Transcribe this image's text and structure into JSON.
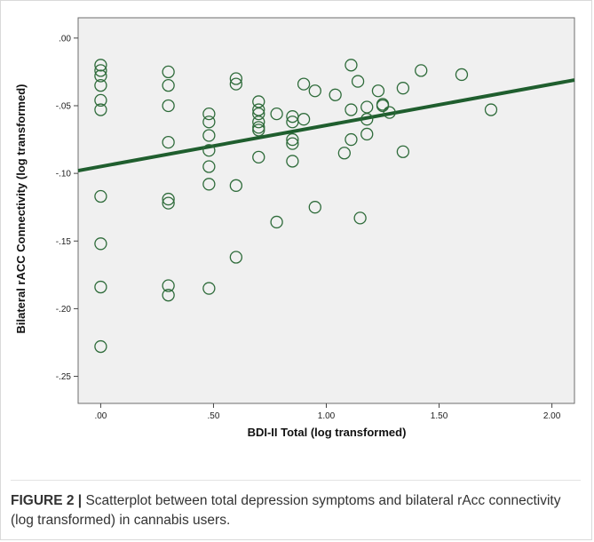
{
  "chart_data": {
    "type": "scatter",
    "xlabel": "BDI-II Total (log transformed)",
    "ylabel": "Bilateral rACC Connectivity (log transformed)",
    "xlim": [
      -0.1,
      2.1
    ],
    "ylim": [
      -0.27,
      0.015
    ],
    "x_ticks": [
      {
        "value": 0.0,
        "label": ".00"
      },
      {
        "value": 0.5,
        "label": ".50"
      },
      {
        "value": 1.0,
        "label": "1.00"
      },
      {
        "value": 1.5,
        "label": "1.50"
      },
      {
        "value": 2.0,
        "label": "2.00"
      }
    ],
    "y_ticks": [
      {
        "value": 0.0,
        "label": ".00"
      },
      {
        "value": -0.05,
        "label": "-.05"
      },
      {
        "value": -0.1,
        "label": "-.10"
      },
      {
        "value": -0.15,
        "label": "-.15"
      },
      {
        "value": -0.2,
        "label": "-.20"
      },
      {
        "value": -0.25,
        "label": "-.25"
      }
    ],
    "marker": "open-circle",
    "marker_color": "#2e6b3a",
    "fit_line": {
      "color": "#1f5e2e",
      "start": [
        -0.1,
        -0.098
      ],
      "end": [
        2.1,
        -0.031
      ]
    },
    "grid": false,
    "background": "#f0f0f0",
    "points": [
      [
        0.0,
        -0.02
      ],
      [
        0.0,
        -0.024
      ],
      [
        0.0,
        -0.028
      ],
      [
        0.0,
        -0.035
      ],
      [
        0.0,
        -0.046
      ],
      [
        0.0,
        -0.053
      ],
      [
        0.0,
        -0.117
      ],
      [
        0.0,
        -0.152
      ],
      [
        0.0,
        -0.184
      ],
      [
        0.0,
        -0.228
      ],
      [
        0.3,
        -0.025
      ],
      [
        0.3,
        -0.035
      ],
      [
        0.3,
        -0.05
      ],
      [
        0.3,
        -0.077
      ],
      [
        0.3,
        -0.119
      ],
      [
        0.3,
        -0.122
      ],
      [
        0.3,
        -0.183
      ],
      [
        0.3,
        -0.19
      ],
      [
        0.48,
        -0.056
      ],
      [
        0.48,
        -0.062
      ],
      [
        0.48,
        -0.072
      ],
      [
        0.48,
        -0.083
      ],
      [
        0.48,
        -0.095
      ],
      [
        0.48,
        -0.108
      ],
      [
        0.48,
        -0.185
      ],
      [
        0.6,
        -0.03
      ],
      [
        0.6,
        -0.034
      ],
      [
        0.6,
        -0.109
      ],
      [
        0.6,
        -0.162
      ],
      [
        0.7,
        -0.047
      ],
      [
        0.7,
        -0.053
      ],
      [
        0.7,
        -0.056
      ],
      [
        0.7,
        -0.062
      ],
      [
        0.7,
        -0.066
      ],
      [
        0.7,
        -0.068
      ],
      [
        0.7,
        -0.088
      ],
      [
        0.78,
        -0.056
      ],
      [
        0.78,
        -0.136
      ],
      [
        0.85,
        -0.058
      ],
      [
        0.85,
        -0.062
      ],
      [
        0.85,
        -0.075
      ],
      [
        0.85,
        -0.078
      ],
      [
        0.85,
        -0.091
      ],
      [
        0.9,
        -0.034
      ],
      [
        0.9,
        -0.06
      ],
      [
        0.95,
        -0.039
      ],
      [
        0.95,
        -0.125
      ],
      [
        1.04,
        -0.042
      ],
      [
        1.08,
        -0.085
      ],
      [
        1.11,
        -0.02
      ],
      [
        1.11,
        -0.053
      ],
      [
        1.11,
        -0.075
      ],
      [
        1.14,
        -0.032
      ],
      [
        1.15,
        -0.133
      ],
      [
        1.18,
        -0.051
      ],
      [
        1.18,
        -0.06
      ],
      [
        1.18,
        -0.071
      ],
      [
        1.23,
        -0.039
      ],
      [
        1.25,
        -0.049
      ],
      [
        1.25,
        -0.05
      ],
      [
        1.28,
        -0.055
      ],
      [
        1.34,
        -0.037
      ],
      [
        1.34,
        -0.084
      ],
      [
        1.42,
        -0.024
      ],
      [
        1.6,
        -0.027
      ],
      [
        1.73,
        -0.053
      ]
    ]
  },
  "caption": {
    "lead": "FIGURE 2 |",
    "text": " Scatterplot between total depression symptoms and bilateral rAcc connectivity (log transformed) in cannabis users."
  }
}
